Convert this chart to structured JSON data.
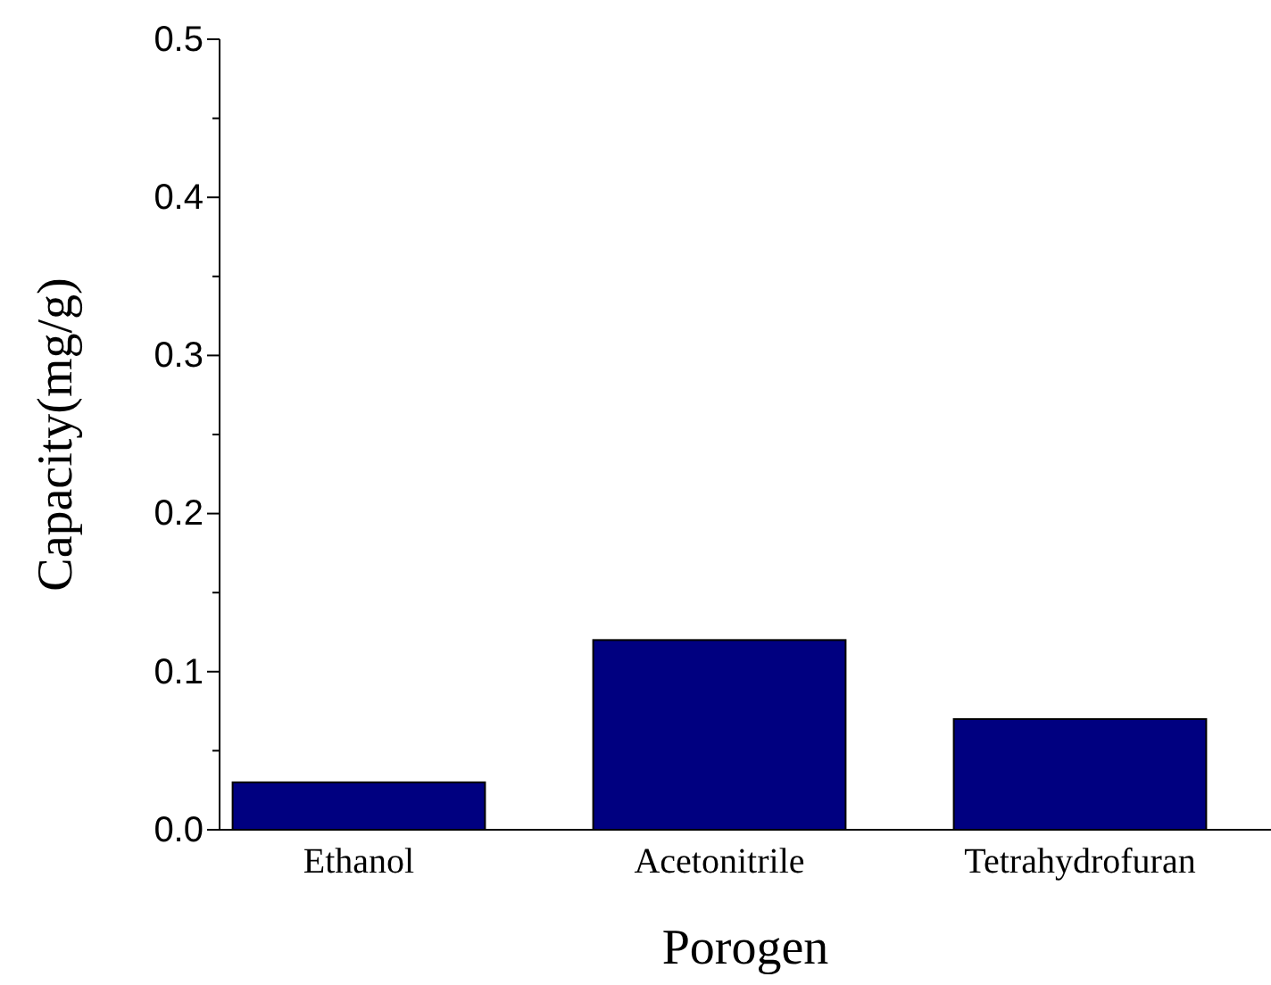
{
  "chart_data": {
    "type": "bar",
    "xlabel": "Porogen",
    "ylabel": "Capacity(mg/g)",
    "categories": [
      "Ethanol",
      "Acetonitrile",
      "Tetrahydrofuran"
    ],
    "values": [
      0.03,
      0.12,
      0.07
    ],
    "color": "#000080",
    "ylim": [
      0,
      0.5
    ],
    "yticks": [
      {
        "value": 0,
        "label": "0.0"
      },
      {
        "value": 0.05,
        "label": null
      },
      {
        "value": 0.1,
        "label": "0.1"
      },
      {
        "value": 0.15,
        "label": null
      },
      {
        "value": 0.2,
        "label": "0.2"
      },
      {
        "value": 0.25,
        "label": null
      },
      {
        "value": 0.3,
        "label": "0.3"
      },
      {
        "value": 0.35,
        "label": null
      },
      {
        "value": 0.4,
        "label": "0.4"
      },
      {
        "value": 0.45,
        "label": null
      },
      {
        "value": 0.5,
        "label": "0.5"
      }
    ],
    "grid": false
  }
}
